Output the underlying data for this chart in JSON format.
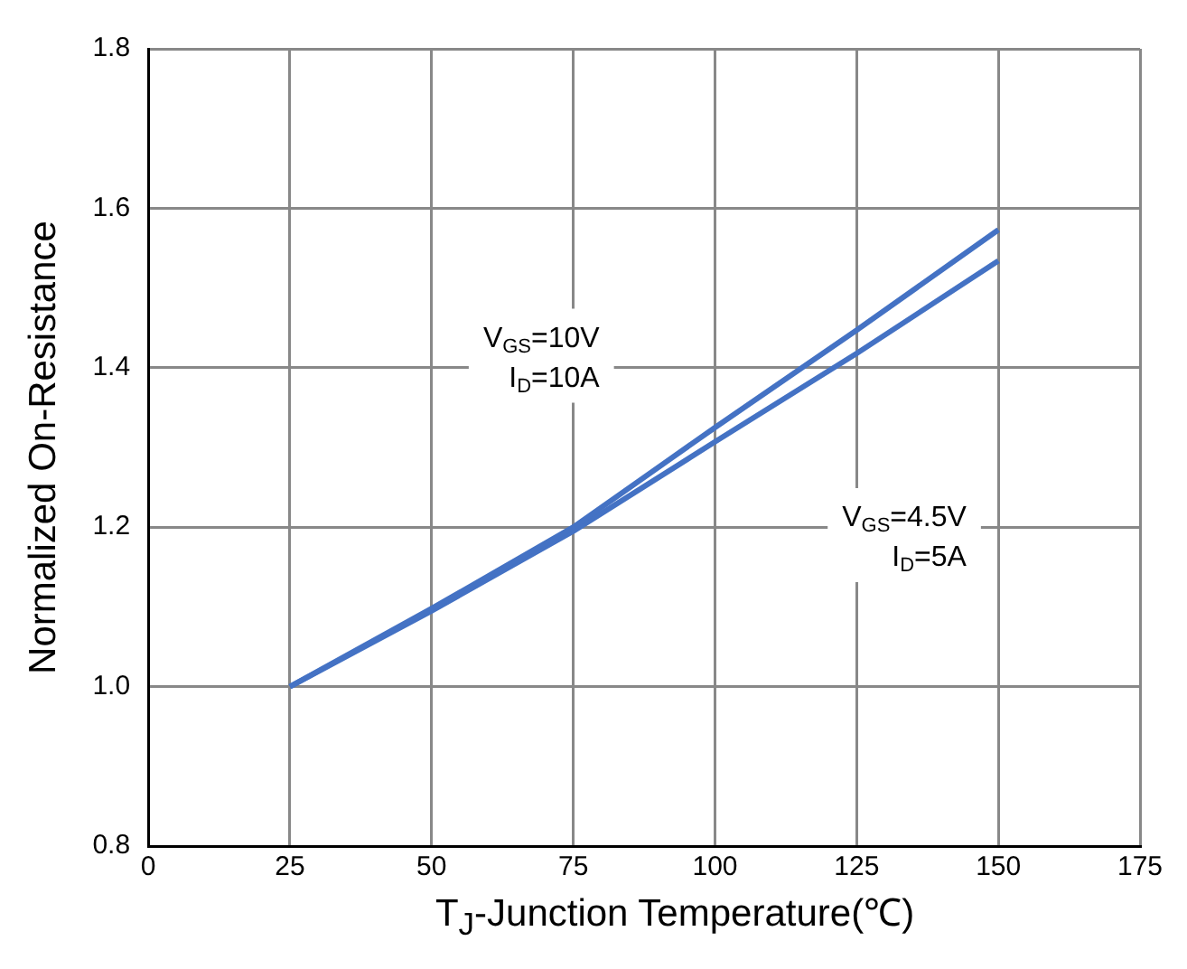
{
  "chart_data": {
    "type": "line",
    "xlabel": "T$_{J}$-Junction Temperature(℃)",
    "ylabel": "Normalized On-Resistance",
    "series": [
      {
        "color": "#4472c4",
        "x": [
          25,
          50,
          75,
          100,
          125,
          150
        ],
        "values": [
          1.0,
          1.098,
          1.2,
          1.325,
          1.447,
          1.573
        ]
      },
      {
        "color": "#4472c4",
        "x": [
          25,
          50,
          75,
          100,
          125,
          150
        ],
        "values": [
          1.0,
          1.095,
          1.195,
          1.307,
          1.418,
          1.534
        ]
      }
    ],
    "annotations": [
      "V$_{GS}$=10V\nI$_{D}$=10A",
      "V$_{GS}$=4.5V\nI$_{D}$=5A"
    ],
    "xlim": [
      0,
      175
    ],
    "xticks": [
      0,
      25,
      50,
      75,
      100,
      125,
      150,
      175
    ],
    "ylim": [
      0.8,
      1.8
    ],
    "yticks": [
      {
        "value": 0.8,
        "label": "0.8"
      },
      {
        "value": 1.0,
        "label": "1.0"
      },
      {
        "value": 1.2,
        "label": "1.2"
      },
      {
        "value": 1.4,
        "label": "1.4"
      },
      {
        "value": 1.6,
        "label": "1.6"
      },
      {
        "value": 1.8,
        "label": "1.8"
      }
    ],
    "grid": true,
    "legend": false,
    "marker": "none",
    "line_style": "solid"
  }
}
